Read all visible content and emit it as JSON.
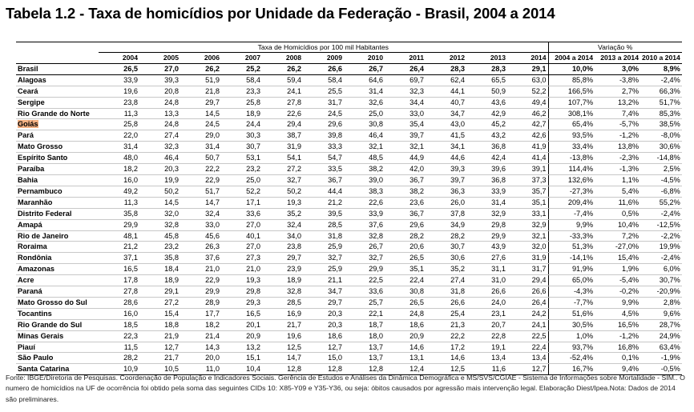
{
  "title": "Tabela 1.2 - Taxa de homicídios por Unidade da Federação - Brasil, 2004 a 2014",
  "group_headers": {
    "taxa": "Taxa de Homicídios por 100 mil Habitantes",
    "variacao": "Variação %"
  },
  "years": [
    "2004",
    "2005",
    "2006",
    "2007",
    "2008",
    "2009",
    "2010",
    "2011",
    "2012",
    "2013",
    "2014"
  ],
  "variation_headers": [
    "2004 a 2014",
    "2013 a 2014",
    "2010 a 2014"
  ],
  "brasil": {
    "name": "Brasil",
    "values": [
      "26,5",
      "27,0",
      "26,2",
      "25,2",
      "26,2",
      "26,6",
      "26,7",
      "26,4",
      "28,3",
      "28,3",
      "29,1"
    ],
    "variation": [
      "10,0%",
      "3,0%",
      "8,9%"
    ]
  },
  "rows": [
    {
      "name": "Alagoas",
      "values": [
        "33,9",
        "39,3",
        "51,9",
        "58,4",
        "59,4",
        "58,4",
        "64,6",
        "69,7",
        "62,4",
        "65,5",
        "63,0"
      ],
      "variation": [
        "85,8%",
        "-3,8%",
        "-2,4%"
      ]
    },
    {
      "name": "Ceará",
      "values": [
        "19,6",
        "20,8",
        "21,8",
        "23,3",
        "24,1",
        "25,5",
        "31,4",
        "32,3",
        "44,1",
        "50,9",
        "52,2"
      ],
      "variation": [
        "166,5%",
        "2,7%",
        "66,3%"
      ]
    },
    {
      "name": "Sergipe",
      "values": [
        "23,8",
        "24,8",
        "29,7",
        "25,8",
        "27,8",
        "31,7",
        "32,6",
        "34,4",
        "40,7",
        "43,6",
        "49,4"
      ],
      "variation": [
        "107,7%",
        "13,2%",
        "51,7%"
      ]
    },
    {
      "name": "Rio Grande do Norte",
      "values": [
        "11,3",
        "13,3",
        "14,5",
        "18,9",
        "22,6",
        "24,5",
        "25,0",
        "33,0",
        "34,7",
        "42,9",
        "46,2"
      ],
      "variation": [
        "308,1%",
        "7,4%",
        "85,3%"
      ]
    },
    {
      "name": "Goiás",
      "highlight": true,
      "values": [
        "25,8",
        "24,8",
        "24,5",
        "24,4",
        "29,4",
        "29,6",
        "30,8",
        "35,4",
        "43,0",
        "45,2",
        "42,7"
      ],
      "variation": [
        "65,4%",
        "-5,7%",
        "38,5%"
      ]
    },
    {
      "name": "Pará",
      "values": [
        "22,0",
        "27,4",
        "29,0",
        "30,3",
        "38,7",
        "39,8",
        "46,4",
        "39,7",
        "41,5",
        "43,2",
        "42,6"
      ],
      "variation": [
        "93,5%",
        "-1,2%",
        "-8,0%"
      ]
    },
    {
      "name": "Mato Grosso",
      "values": [
        "31,4",
        "32,3",
        "31,4",
        "30,7",
        "31,9",
        "33,3",
        "32,1",
        "32,1",
        "34,1",
        "36,8",
        "41,9"
      ],
      "variation": [
        "33,4%",
        "13,8%",
        "30,6%"
      ]
    },
    {
      "name": "Espírito Santo",
      "values": [
        "48,0",
        "46,4",
        "50,7",
        "53,1",
        "54,1",
        "54,7",
        "48,5",
        "44,9",
        "44,6",
        "42,4",
        "41,4"
      ],
      "variation": [
        "-13,8%",
        "-2,3%",
        "-14,8%"
      ]
    },
    {
      "name": "Paraíba",
      "values": [
        "18,2",
        "20,3",
        "22,2",
        "23,2",
        "27,2",
        "33,5",
        "38,2",
        "42,0",
        "39,3",
        "39,6",
        "39,1"
      ],
      "variation": [
        "114,4%",
        "-1,3%",
        "2,5%"
      ]
    },
    {
      "name": "Bahia",
      "values": [
        "16,0",
        "19,9",
        "22,9",
        "25,0",
        "32,7",
        "36,7",
        "39,0",
        "36,7",
        "39,7",
        "36,8",
        "37,3"
      ],
      "variation": [
        "132,6%",
        "1,1%",
        "-4,5%"
      ]
    },
    {
      "name": "Pernambuco",
      "values": [
        "49,2",
        "50,2",
        "51,7",
        "52,2",
        "50,2",
        "44,4",
        "38,3",
        "38,2",
        "36,3",
        "33,9",
        "35,7"
      ],
      "variation": [
        "-27,3%",
        "5,4%",
        "-6,8%"
      ]
    },
    {
      "name": "Maranhão",
      "values": [
        "11,3",
        "14,5",
        "14,7",
        "17,1",
        "19,3",
        "21,2",
        "22,6",
        "23,6",
        "26,0",
        "31,4",
        "35,1"
      ],
      "variation": [
        "209,4%",
        "11,6%",
        "55,2%"
      ]
    },
    {
      "name": "Distrito Federal",
      "values": [
        "35,8",
        "32,0",
        "32,4",
        "33,6",
        "35,2",
        "39,5",
        "33,9",
        "36,7",
        "37,8",
        "32,9",
        "33,1"
      ],
      "variation": [
        "-7,4%",
        "0,5%",
        "-2,4%"
      ]
    },
    {
      "name": "Amapá",
      "values": [
        "29,9",
        "32,8",
        "33,0",
        "27,0",
        "32,4",
        "28,5",
        "37,6",
        "29,6",
        "34,9",
        "29,8",
        "32,9"
      ],
      "variation": [
        "9,9%",
        "10,4%",
        "-12,5%"
      ]
    },
    {
      "name": "Rio de Janeiro",
      "values": [
        "48,1",
        "45,8",
        "45,6",
        "40,1",
        "34,0",
        "31,8",
        "32,8",
        "28,2",
        "28,2",
        "29,9",
        "32,1"
      ],
      "variation": [
        "-33,3%",
        "7,2%",
        "-2,2%"
      ]
    },
    {
      "name": "Roraima",
      "values": [
        "21,2",
        "23,2",
        "26,3",
        "27,0",
        "23,8",
        "25,9",
        "26,7",
        "20,6",
        "30,7",
        "43,9",
        "32,0"
      ],
      "variation": [
        "51,3%",
        "-27,0%",
        "19,9%"
      ]
    },
    {
      "name": "Rondônia",
      "values": [
        "37,1",
        "35,8",
        "37,6",
        "27,3",
        "29,7",
        "32,7",
        "32,7",
        "26,5",
        "30,6",
        "27,6",
        "31,9"
      ],
      "variation": [
        "-14,1%",
        "15,4%",
        "-2,4%"
      ]
    },
    {
      "name": "Amazonas",
      "values": [
        "16,5",
        "18,4",
        "21,0",
        "21,0",
        "23,9",
        "25,9",
        "29,9",
        "35,1",
        "35,2",
        "31,1",
        "31,7"
      ],
      "variation": [
        "91,9%",
        "1,9%",
        "6,0%"
      ]
    },
    {
      "name": "Acre",
      "values": [
        "17,8",
        "18,9",
        "22,9",
        "19,3",
        "18,9",
        "21,1",
        "22,5",
        "22,4",
        "27,4",
        "31,0",
        "29,4"
      ],
      "variation": [
        "65,0%",
        "-5,4%",
        "30,7%"
      ]
    },
    {
      "name": "Paraná",
      "values": [
        "27,8",
        "29,1",
        "29,9",
        "29,8",
        "32,8",
        "34,7",
        "33,6",
        "30,8",
        "31,8",
        "26,6",
        "26,6"
      ],
      "variation": [
        "-4,3%",
        "-0,2%",
        "-20,9%"
      ]
    },
    {
      "name": "Mato Grosso do Sul",
      "values": [
        "28,6",
        "27,2",
        "28,9",
        "29,3",
        "28,5",
        "29,7",
        "25,7",
        "26,5",
        "26,6",
        "24,0",
        "26,4"
      ],
      "variation": [
        "-7,7%",
        "9,9%",
        "2,8%"
      ]
    },
    {
      "name": "Tocantins",
      "values": [
        "16,0",
        "15,4",
        "17,7",
        "16,5",
        "16,9",
        "20,3",
        "22,1",
        "24,8",
        "25,4",
        "23,1",
        "24,2"
      ],
      "variation": [
        "51,6%",
        "4,5%",
        "9,6%"
      ]
    },
    {
      "name": "Rio Grande do Sul",
      "values": [
        "18,5",
        "18,8",
        "18,2",
        "20,1",
        "21,7",
        "20,3",
        "18,7",
        "18,6",
        "21,3",
        "20,7",
        "24,1"
      ],
      "variation": [
        "30,5%",
        "16,5%",
        "28,7%"
      ]
    },
    {
      "name": "Minas Gerais",
      "values": [
        "22,3",
        "21,9",
        "21,4",
        "20,9",
        "19,6",
        "18,6",
        "18,0",
        "20,9",
        "22,2",
        "22,8",
        "22,5"
      ],
      "variation": [
        "1,0%",
        "-1,2%",
        "24,9%"
      ]
    },
    {
      "name": "Piauí",
      "values": [
        "11,5",
        "12,7",
        "14,3",
        "13,2",
        "12,5",
        "12,7",
        "13,7",
        "14,6",
        "17,2",
        "19,1",
        "22,4"
      ],
      "variation": [
        "93,7%",
        "16,8%",
        "63,4%"
      ]
    },
    {
      "name": "São Paulo",
      "values": [
        "28,2",
        "21,7",
        "20,0",
        "15,1",
        "14,7",
        "15,0",
        "13,7",
        "13,1",
        "14,6",
        "13,4",
        "13,4"
      ],
      "variation": [
        "-52,4%",
        "0,1%",
        "-1,9%"
      ]
    },
    {
      "name": "Santa Catarina",
      "values": [
        "10,9",
        "10,5",
        "11,0",
        "10,4",
        "12,8",
        "12,8",
        "12,8",
        "12,4",
        "12,5",
        "11,6",
        "12,7"
      ],
      "variation": [
        "16,7%",
        "9,4%",
        "-0,5%"
      ]
    }
  ],
  "footnote": "Fonte: IBGE/Diretoria de Pesquisas. Coordenação de População e Indicadores Sociais. Gerência de Estudos e Análises da Dinâmica Demográfica e MS/SVS/CGIAE - Sistema de Informações sobre Mortalidade - SIM.. O numero de homicídios na UF de ocorrência foi obtido pela soma das seguintes CIDs 10: X85-Y09 e Y35-Y36, ou seja: óbitos causados por agressão mais intervenção legal. Elaboração Diest/Ipea.Nota: Dados de 2014 são preliminares."
}
